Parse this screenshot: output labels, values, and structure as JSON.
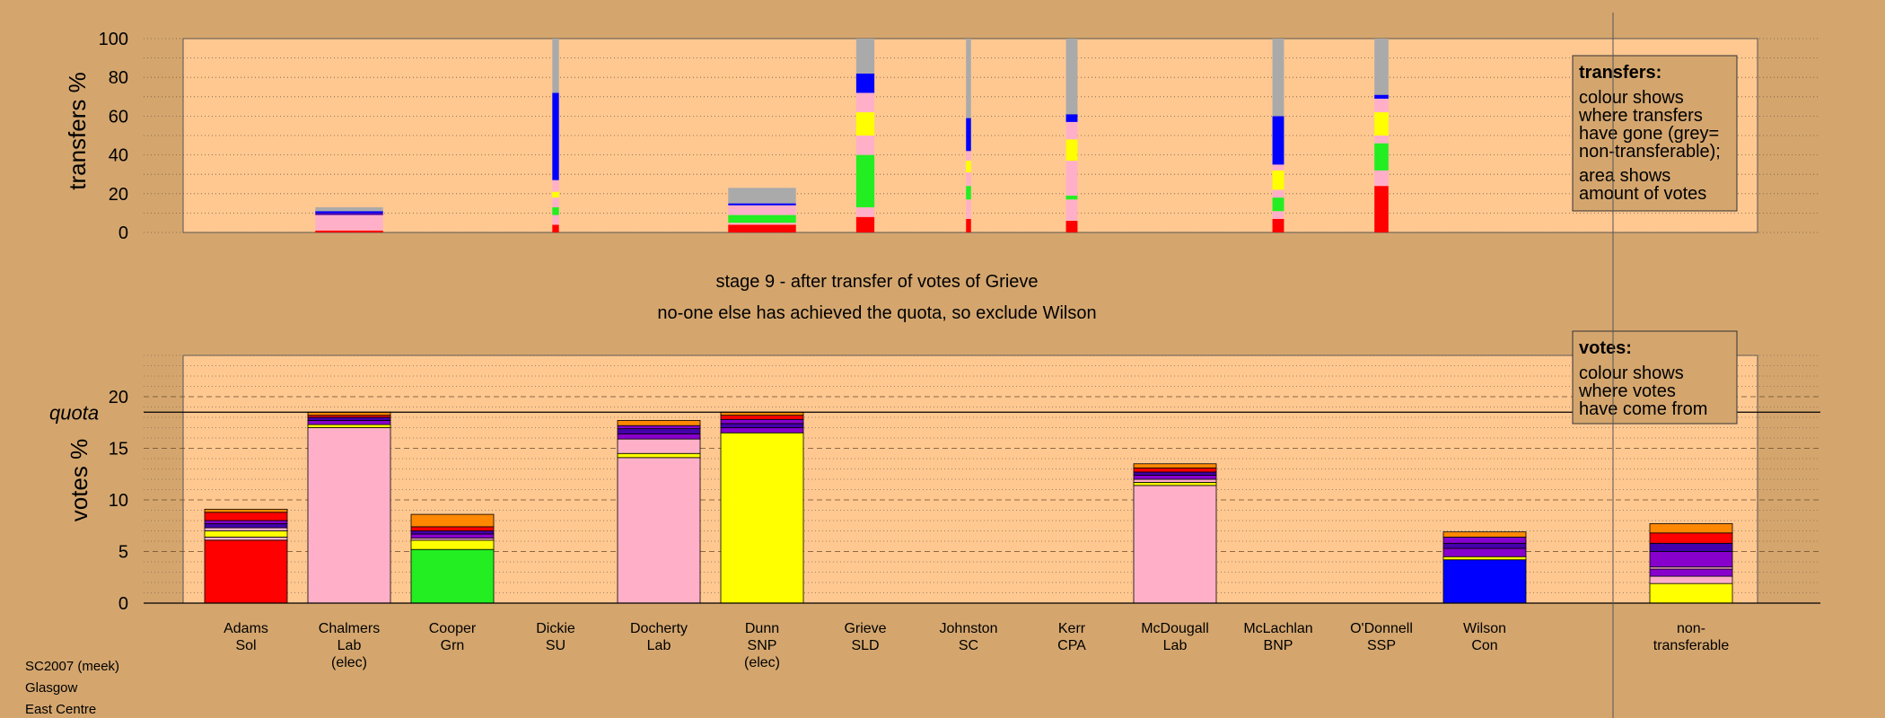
{
  "colors": {
    "background": "#d4a66e",
    "plot_area": "#ffc891",
    "Sol": "#ff0000",
    "Lab": "#ffb0c8",
    "Grn": "#22ee22",
    "SU": "#ffff00",
    "SNP": "#ffff00",
    "SLD": "#ffff00",
    "SC": "#e8dd00",
    "CPA": "#8800cc",
    "BNP": "#4400aa",
    "SSP": "#ff0000",
    "Con": "#0000ff",
    "Other": "#ff8800",
    "non_transferable": "#aaaaaa"
  },
  "chart_data": [
    {
      "type": "bar",
      "name": "transfers",
      "ylabel": "transfers %",
      "ylim": [
        0,
        100
      ],
      "yticks": [
        0,
        20,
        40,
        60,
        80,
        100
      ],
      "legend": {
        "title": "transfers:",
        "lines": [
          "colour shows",
          "where transfers",
          "have gone (grey=",
          "non-transferable);",
          "area shows",
          "amount of votes"
        ],
        "placement": "top-right"
      },
      "columns": [
        {
          "candidate": "Chalmers",
          "width_share": 0.82,
          "segments": [
            {
              "party": "Sol",
              "value": 1
            },
            {
              "party": "Lab",
              "value": 8
            },
            {
              "party": "BNP",
              "value": 1
            },
            {
              "party": "Con",
              "value": 1
            },
            {
              "party": "non_transferable",
              "value": 2
            }
          ]
        },
        {
          "candidate": "Dickie",
          "width_share": 0.08,
          "segments": [
            {
              "party": "Sol",
              "value": 4
            },
            {
              "party": "Lab",
              "value": 5
            },
            {
              "party": "Grn",
              "value": 4
            },
            {
              "party": "Lab",
              "value": 5
            },
            {
              "party": "SNP",
              "value": 3
            },
            {
              "party": "Lab",
              "value": 6
            },
            {
              "party": "Con",
              "value": 45
            },
            {
              "party": "non_transferable",
              "value": 28
            }
          ]
        },
        {
          "candidate": "Dunn",
          "width_share": 0.82,
          "segments": [
            {
              "party": "Sol",
              "value": 4
            },
            {
              "party": "Lab",
              "value": 1
            },
            {
              "party": "Grn",
              "value": 4
            },
            {
              "party": "Lab",
              "value": 5
            },
            {
              "party": "Con",
              "value": 1
            },
            {
              "party": "non_transferable",
              "value": 8
            }
          ]
        },
        {
          "candidate": "Grieve",
          "width_share": 0.22,
          "segments": [
            {
              "party": "Sol",
              "value": 8
            },
            {
              "party": "Lab",
              "value": 5
            },
            {
              "party": "Grn",
              "value": 27
            },
            {
              "party": "Lab",
              "value": 10
            },
            {
              "party": "SNP",
              "value": 12
            },
            {
              "party": "Lab",
              "value": 10
            },
            {
              "party": "Con",
              "value": 10
            },
            {
              "party": "non_transferable",
              "value": 18
            }
          ]
        },
        {
          "candidate": "Johnston",
          "width_share": 0.06,
          "segments": [
            {
              "party": "Sol",
              "value": 7
            },
            {
              "party": "Lab",
              "value": 10
            },
            {
              "party": "Grn",
              "value": 7
            },
            {
              "party": "Lab",
              "value": 7
            },
            {
              "party": "SNP",
              "value": 6
            },
            {
              "party": "Lab",
              "value": 5
            },
            {
              "party": "Con",
              "value": 17
            },
            {
              "party": "non_transferable",
              "value": 41
            }
          ]
        },
        {
          "candidate": "Kerr",
          "width_share": 0.14,
          "segments": [
            {
              "party": "Sol",
              "value": 6
            },
            {
              "party": "Lab",
              "value": 11
            },
            {
              "party": "Grn",
              "value": 2
            },
            {
              "party": "Lab",
              "value": 18
            },
            {
              "party": "SNP",
              "value": 11
            },
            {
              "party": "Lab",
              "value": 9
            },
            {
              "party": "Con",
              "value": 4
            },
            {
              "party": "non_transferable",
              "value": 39
            }
          ]
        },
        {
          "candidate": "McLachlan",
          "width_share": 0.14,
          "segments": [
            {
              "party": "Sol",
              "value": 7
            },
            {
              "party": "Lab",
              "value": 4
            },
            {
              "party": "Grn",
              "value": 7
            },
            {
              "party": "Lab",
              "value": 4
            },
            {
              "party": "SNP",
              "value": 10
            },
            {
              "party": "Lab",
              "value": 3
            },
            {
              "party": "Con",
              "value": 25
            },
            {
              "party": "non_transferable",
              "value": 40
            }
          ]
        },
        {
          "candidate": "O'Donnell",
          "width_share": 0.17,
          "segments": [
            {
              "party": "Sol",
              "value": 24
            },
            {
              "party": "Lab",
              "value": 8
            },
            {
              "party": "Grn",
              "value": 14
            },
            {
              "party": "Lab",
              "value": 4
            },
            {
              "party": "SNP",
              "value": 12
            },
            {
              "party": "Lab",
              "value": 7
            },
            {
              "party": "Con",
              "value": 2
            },
            {
              "party": "non_transferable",
              "value": 29
            }
          ]
        }
      ]
    },
    {
      "type": "bar",
      "name": "votes",
      "ylabel": "votes %",
      "ylim": [
        0,
        24
      ],
      "yticks": [
        0,
        5,
        10,
        15,
        20
      ],
      "quota": 18.5,
      "quota_label": "quota",
      "legend": {
        "title": "votes:",
        "lines": [
          "colour shows",
          "where votes",
          "have come from"
        ],
        "placement": "top-right"
      },
      "categories": [
        {
          "lines": [
            "Adams",
            "Sol"
          ]
        },
        {
          "lines": [
            "Chalmers",
            "Lab",
            "(elec)"
          ]
        },
        {
          "lines": [
            "Cooper",
            "Grn"
          ]
        },
        {
          "lines": [
            "Dickie",
            "SU"
          ]
        },
        {
          "lines": [
            "Docherty",
            "Lab"
          ]
        },
        {
          "lines": [
            "Dunn",
            "SNP",
            "(elec)"
          ]
        },
        {
          "lines": [
            "Grieve",
            "SLD"
          ]
        },
        {
          "lines": [
            "Johnston",
            "SC"
          ]
        },
        {
          "lines": [
            "Kerr",
            "CPA"
          ]
        },
        {
          "lines": [
            "McDougall",
            "Lab"
          ]
        },
        {
          "lines": [
            "McLachlan",
            "BNP"
          ]
        },
        {
          "lines": [
            "O'Donnell",
            "SSP"
          ]
        },
        {
          "lines": [
            "Wilson",
            "Con"
          ]
        },
        {
          "lines": [
            "",
            ""
          ]
        },
        {
          "lines": [
            "non-",
            "transferable"
          ]
        }
      ],
      "columns": [
        {
          "candidate": "Adams",
          "segments": [
            {
              "party": "Sol",
              "value": 6.1
            },
            {
              "party": "Lab",
              "value": 0.3
            },
            {
              "party": "SNP",
              "value": 0.6
            },
            {
              "party": "Lab",
              "value": 0.3
            },
            {
              "party": "BNP",
              "value": 0.4
            },
            {
              "party": "CPA",
              "value": 0.3
            },
            {
              "party": "SSP",
              "value": 0.8
            },
            {
              "party": "Other",
              "value": 0.3
            }
          ]
        },
        {
          "candidate": "Chalmers",
          "segments": [
            {
              "party": "Lab",
              "value": 17.0
            },
            {
              "party": "SNP",
              "value": 0.3
            },
            {
              "party": "CPA",
              "value": 0.4
            },
            {
              "party": "BNP",
              "value": 0.3
            },
            {
              "party": "SSP",
              "value": 0.2
            },
            {
              "party": "Other",
              "value": 0.3
            }
          ]
        },
        {
          "candidate": "Cooper",
          "segments": [
            {
              "party": "Grn",
              "value": 5.2
            },
            {
              "party": "SNP",
              "value": 0.9
            },
            {
              "party": "Lab",
              "value": 0.2
            },
            {
              "party": "CPA",
              "value": 0.4
            },
            {
              "party": "BNP",
              "value": 0.3
            },
            {
              "party": "SSP",
              "value": 0.4
            },
            {
              "party": "Other",
              "value": 1.2
            }
          ]
        },
        {
          "candidate": "Dickie",
          "segments": []
        },
        {
          "candidate": "Docherty",
          "segments": [
            {
              "party": "Lab",
              "value": 14.1
            },
            {
              "party": "SNP",
              "value": 0.4
            },
            {
              "party": "Lab",
              "value": 1.4
            },
            {
              "party": "CPA",
              "value": 0.5
            },
            {
              "party": "BNP",
              "value": 0.5
            },
            {
              "party": "CPA",
              "value": 0.3
            },
            {
              "party": "Other",
              "value": 0.5
            }
          ]
        },
        {
          "candidate": "Dunn",
          "segments": [
            {
              "party": "SNP",
              "value": 16.5
            },
            {
              "party": "CPA",
              "value": 0.5
            },
            {
              "party": "BNP",
              "value": 0.4
            },
            {
              "party": "CPA",
              "value": 0.4
            },
            {
              "party": "SSP",
              "value": 0.4
            },
            {
              "party": "Other",
              "value": 0.3
            }
          ]
        },
        {
          "candidate": "Grieve",
          "segments": []
        },
        {
          "candidate": "Johnston",
          "segments": []
        },
        {
          "candidate": "Kerr",
          "segments": []
        },
        {
          "candidate": "McDougall",
          "segments": [
            {
              "party": "Lab",
              "value": 11.4
            },
            {
              "party": "SNP",
              "value": 0.3
            },
            {
              "party": "Lab",
              "value": 0.3
            },
            {
              "party": "CPA",
              "value": 0.4
            },
            {
              "party": "BNP",
              "value": 0.3
            },
            {
              "party": "SSP",
              "value": 0.4
            },
            {
              "party": "Other",
              "value": 0.4
            }
          ]
        },
        {
          "candidate": "McLachlan",
          "segments": []
        },
        {
          "candidate": "O'Donnell",
          "segments": []
        },
        {
          "candidate": "Wilson",
          "segments": [
            {
              "party": "Con",
              "value": 4.2
            },
            {
              "party": "SNP",
              "value": 0.3
            },
            {
              "party": "CPA",
              "value": 0.8
            },
            {
              "party": "BNP",
              "value": 0.5
            },
            {
              "party": "CPA",
              "value": 0.6
            },
            {
              "party": "Other",
              "value": 0.5
            }
          ]
        },
        {
          "candidate": "",
          "segments": []
        },
        {
          "candidate": "non-transferable",
          "segments": [
            {
              "party": "SNP",
              "value": 1.9
            },
            {
              "party": "Lab",
              "value": 0.7
            },
            {
              "party": "CPA",
              "value": 0.7
            },
            {
              "party": "Lab",
              "value": 0.2
            },
            {
              "party": "CPA",
              "value": 1.5
            },
            {
              "party": "BNP",
              "value": 0.8
            },
            {
              "party": "SSP",
              "value": 1.0
            },
            {
              "party": "Other",
              "value": 0.9
            }
          ]
        }
      ]
    }
  ],
  "stage_title": "stage 9 - after transfer of votes of Grieve",
  "stage_subtitle": "no-one else has achieved the quota, so exclude Wilson",
  "footer": {
    "line1": "SC2007 (meek)",
    "line2": "Glasgow",
    "line3": "East Centre"
  }
}
